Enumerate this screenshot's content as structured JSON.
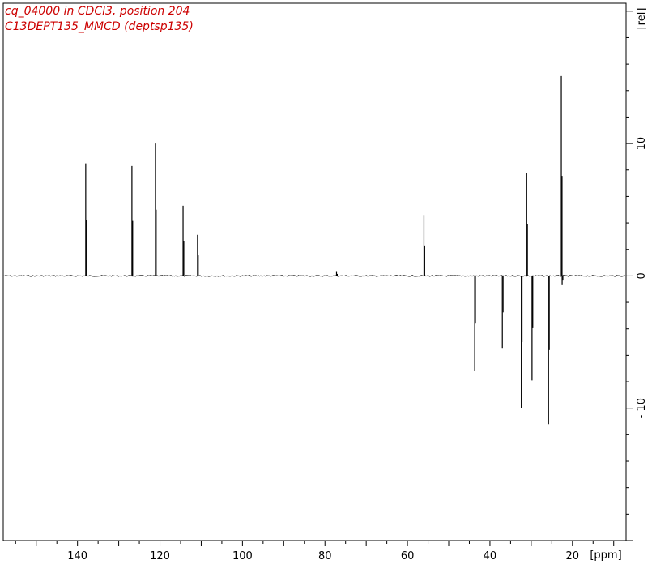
{
  "header": {
    "line1": "cq_04000 in CDCl3, position 204",
    "line2": "C13DEPT135_MMCD (deptsp135)"
  },
  "colors": {
    "title": "#cc0000",
    "spectrum": "#000000",
    "frame": "#000000",
    "background": "#ffffff"
  },
  "chart_data": {
    "type": "line",
    "title": "",
    "xlabel": "[ppm]",
    "ylabel": "[rel]",
    "xlim": [
      158,
      7
    ],
    "ylim": [
      -20,
      20.6
    ],
    "x_ticks": [
      140,
      120,
      100,
      80,
      60,
      40,
      20
    ],
    "y_ticks": [
      10,
      0,
      -10
    ],
    "x_tick_labels": [
      "140",
      "120",
      "100",
      "80",
      "60",
      "40",
      "20"
    ],
    "y_tick_labels": [
      "10",
      "0",
      "- 10"
    ],
    "grid": false,
    "series": [
      {
        "peaks": [
          {
            "ppm": 138.0,
            "intensity": 8.5
          },
          {
            "ppm": 126.8,
            "intensity": 8.3
          },
          {
            "ppm": 121.1,
            "intensity": 10.0
          },
          {
            "ppm": 114.4,
            "intensity": 5.3
          },
          {
            "ppm": 110.9,
            "intensity": 3.1
          },
          {
            "ppm": 77.2,
            "intensity": 0.3
          },
          {
            "ppm": 56.0,
            "intensity": 4.6
          },
          {
            "ppm": 43.7,
            "intensity": -7.2
          },
          {
            "ppm": 37.0,
            "intensity": -5.5
          },
          {
            "ppm": 32.4,
            "intensity": -10.0
          },
          {
            "ppm": 31.1,
            "intensity": 7.8
          },
          {
            "ppm": 29.8,
            "intensity": -7.9
          },
          {
            "ppm": 25.8,
            "intensity": -11.2
          },
          {
            "ppm": 22.7,
            "intensity": 15.1
          },
          {
            "ppm": 22.5,
            "intensity": -0.7
          }
        ]
      }
    ]
  }
}
